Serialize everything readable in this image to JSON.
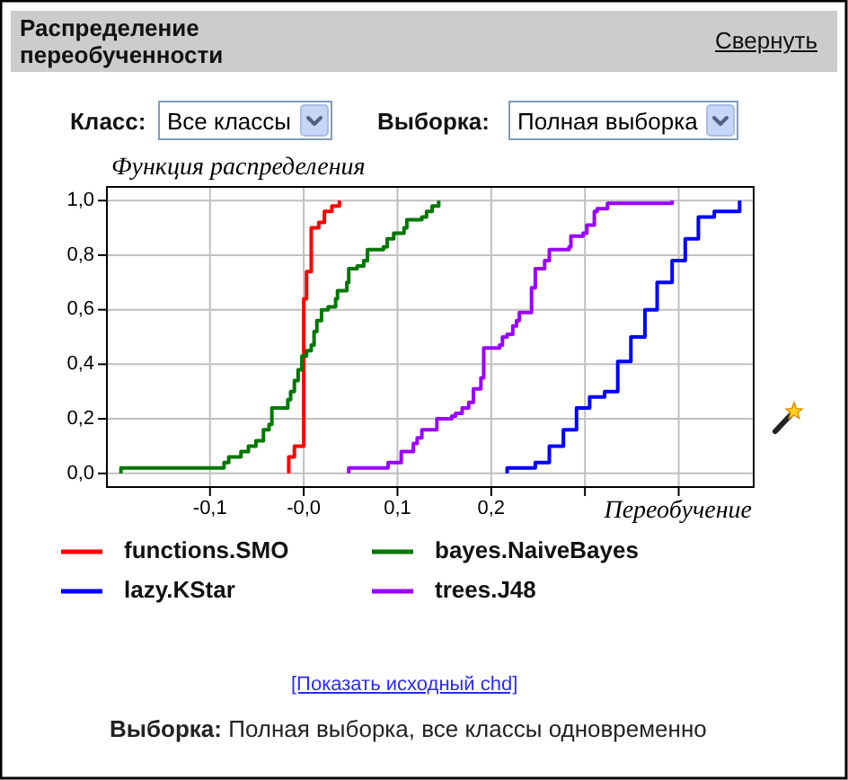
{
  "chart_data": {
    "type": "step",
    "title": "Распределение переобученности",
    "xlabel": "Переобучение",
    "ylabel": "Функция распределения",
    "annotations": [
      "Свернуть",
      "Класс:",
      "Все классы",
      "Выборка:",
      "Полная выборка",
      "[Показать исходный chd]",
      "Выборка:",
      "Полная выборка, все классы одновременно"
    ],
    "xlim": [
      -0.21,
      0.48
    ],
    "ylim": [
      -0.05,
      1.05
    ],
    "xticks": [
      {
        "value": -0.1,
        "label": "-0,1"
      },
      {
        "value": 0,
        "label": "-0,0"
      },
      {
        "value": 0.1,
        "label": "0,1"
      },
      {
        "value": 0.2,
        "label": "0,2"
      },
      {
        "value": 0.3,
        "label": null
      },
      {
        "value": 0.4,
        "label": null
      }
    ],
    "yticks": [
      {
        "value": 0,
        "label": "0,0"
      },
      {
        "value": 0.2,
        "label": "0,2"
      },
      {
        "value": 0.4,
        "label": "0,4"
      },
      {
        "value": 0.6,
        "label": "0,6"
      },
      {
        "value": 0.8,
        "label": "0,8"
      },
      {
        "value": 1,
        "label": "1,0"
      }
    ],
    "grid": true,
    "legend": "bottom",
    "series": [
      {
        "name": "functions.SMO",
        "color": "#ff0000",
        "x": [
          -0.016,
          -0.016,
          -0.01,
          0.0,
          0.003,
          0.008,
          0.016,
          0.022,
          0.03,
          0.038
        ],
        "values": [
          0,
          0.06,
          0.1,
          0.64,
          0.74,
          0.9,
          0.92,
          0.96,
          0.98,
          1.0
        ]
      },
      {
        "name": "bayes.NaiveBayes",
        "color": "#007700",
        "x": [
          -0.195,
          -0.195,
          -0.085,
          -0.08,
          -0.067,
          -0.059,
          -0.051,
          -0.043,
          -0.037,
          -0.034,
          -0.017,
          -0.014,
          -0.01,
          -0.006,
          -0.002,
          0.003,
          0.008,
          0.011,
          0.014,
          0.019,
          0.026,
          0.034,
          0.036,
          0.046,
          0.048,
          0.057,
          0.064,
          0.068,
          0.085,
          0.089,
          0.096,
          0.107,
          0.11,
          0.126,
          0.131,
          0.137,
          0.144
        ],
        "values": [
          0,
          0.02,
          0.04,
          0.06,
          0.08,
          0.1,
          0.12,
          0.16,
          0.18,
          0.24,
          0.27,
          0.3,
          0.34,
          0.38,
          0.43,
          0.45,
          0.47,
          0.52,
          0.56,
          0.6,
          0.61,
          0.64,
          0.67,
          0.7,
          0.75,
          0.76,
          0.78,
          0.82,
          0.83,
          0.86,
          0.88,
          0.9,
          0.93,
          0.94,
          0.96,
          0.98,
          1.0
        ]
      },
      {
        "name": "lazy.KStar",
        "color": "#0000ff",
        "x": [
          0.217,
          0.217,
          0.247,
          0.262,
          0.277,
          0.291,
          0.305,
          0.321,
          0.335,
          0.349,
          0.364,
          0.377,
          0.393,
          0.407,
          0.421,
          0.438,
          0.465
        ],
        "values": [
          0,
          0.02,
          0.04,
          0.1,
          0.16,
          0.24,
          0.28,
          0.3,
          0.41,
          0.5,
          0.6,
          0.7,
          0.78,
          0.86,
          0.94,
          0.96,
          1.0
        ]
      },
      {
        "name": "trees.J48",
        "color": "#9900ff",
        "x": [
          0.048,
          0.048,
          0.09,
          0.104,
          0.117,
          0.121,
          0.126,
          0.142,
          0.158,
          0.162,
          0.169,
          0.176,
          0.181,
          0.189,
          0.192,
          0.209,
          0.212,
          0.217,
          0.223,
          0.227,
          0.23,
          0.243,
          0.247,
          0.257,
          0.262,
          0.283,
          0.285,
          0.298,
          0.302,
          0.31,
          0.313,
          0.324,
          0.393
        ],
        "values": [
          0,
          0.02,
          0.04,
          0.08,
          0.11,
          0.13,
          0.16,
          0.2,
          0.21,
          0.22,
          0.24,
          0.26,
          0.31,
          0.35,
          0.46,
          0.47,
          0.5,
          0.51,
          0.54,
          0.56,
          0.59,
          0.68,
          0.75,
          0.78,
          0.82,
          0.83,
          0.87,
          0.88,
          0.91,
          0.96,
          0.97,
          0.99,
          1.0
        ]
      }
    ]
  }
}
